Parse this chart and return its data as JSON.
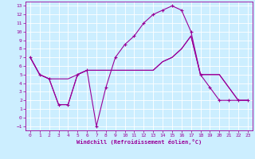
{
  "xlabel": "Windchill (Refroidissement éolien,°C)",
  "bg_color": "#cceeff",
  "line_color": "#990099",
  "grid_color": "#ffffff",
  "ylim": [
    -1.5,
    13.5
  ],
  "xlim": [
    -0.5,
    23.5
  ],
  "yticks": [
    -1,
    0,
    1,
    2,
    3,
    4,
    5,
    6,
    7,
    8,
    9,
    10,
    11,
    12,
    13
  ],
  "xticks": [
    0,
    1,
    2,
    3,
    4,
    5,
    6,
    7,
    8,
    9,
    10,
    11,
    12,
    13,
    14,
    15,
    16,
    17,
    18,
    19,
    20,
    21,
    22,
    23
  ],
  "line1_x": [
    0,
    1,
    2,
    3,
    4,
    5,
    6,
    7,
    8,
    9,
    10,
    11,
    12,
    13,
    14,
    15,
    16,
    17,
    18,
    19,
    20,
    21,
    22,
    23
  ],
  "line1_y": [
    7,
    5,
    4.5,
    1.5,
    1.5,
    5,
    5.5,
    -1,
    3.5,
    7,
    8.5,
    9.5,
    11,
    12,
    12.5,
    13,
    12.5,
    10,
    5,
    3.5,
    2,
    2,
    2,
    2
  ],
  "line2_x": [
    0,
    1,
    2,
    3,
    4,
    5,
    6,
    7,
    8,
    9,
    10,
    11,
    12,
    13,
    14,
    15,
    16,
    17,
    18,
    19,
    20,
    21,
    22,
    23
  ],
  "line2_y": [
    7,
    5,
    4.5,
    4.5,
    4.5,
    5,
    5.5,
    5.5,
    5.5,
    5.5,
    5.5,
    5.5,
    5.5,
    5.5,
    6.5,
    7,
    8,
    9.5,
    5,
    5,
    5,
    3.5,
    2,
    2
  ],
  "line3_x": [
    0,
    1,
    2,
    3,
    4,
    5,
    6,
    7,
    8,
    9,
    10,
    11,
    12,
    13,
    14,
    15,
    16,
    17,
    18,
    19,
    20,
    21,
    22,
    23
  ],
  "line3_y": [
    7,
    5,
    4.5,
    1.5,
    1.5,
    5,
    5.5,
    5.5,
    5.5,
    5.5,
    5.5,
    5.5,
    5.5,
    5.5,
    6.5,
    7,
    8,
    9.5,
    5,
    5,
    5,
    3.5,
    2,
    2
  ]
}
